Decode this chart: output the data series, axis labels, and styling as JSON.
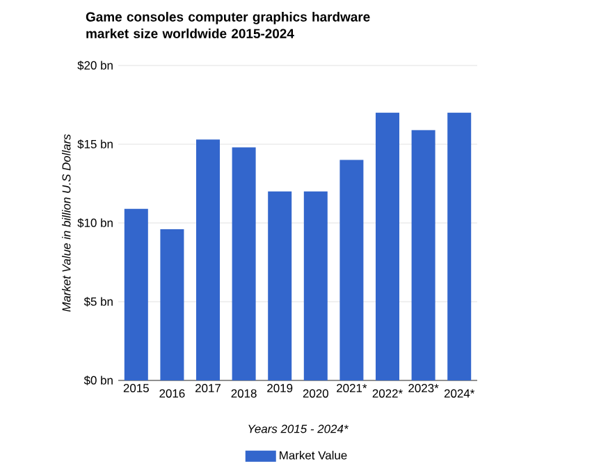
{
  "chart_data": {
    "type": "bar",
    "title": "Game consoles computer graphics hardware market size worldwide 2015-2024",
    "xlabel": "Years 2015 - 2024*",
    "ylabel": "Market Value in billion U.S Dollars",
    "categories": [
      "2015",
      "2016",
      "2017",
      "2018",
      "2019",
      "2020",
      "2021*",
      "2022*",
      "2023*",
      "2024*"
    ],
    "series": [
      {
        "name": "Market Value",
        "color": "#3366cc",
        "values": [
          10.9,
          9.6,
          15.3,
          14.8,
          12.0,
          12.0,
          14.0,
          17.0,
          15.9,
          17.0
        ]
      }
    ],
    "ylim": [
      0,
      20
    ],
    "yticks": [
      {
        "value": 0,
        "label": "$0 bn"
      },
      {
        "value": 5,
        "label": "$5 bn"
      },
      {
        "value": 10,
        "label": "$10 bn"
      },
      {
        "value": 15,
        "label": "$15 bn"
      },
      {
        "value": 20,
        "label": "$20 bn"
      }
    ],
    "grid": "y",
    "legend": "bottom"
  }
}
